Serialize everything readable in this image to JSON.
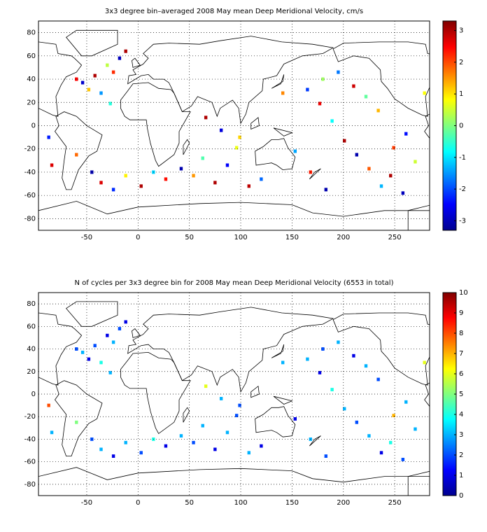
{
  "chart_data": [
    {
      "type": "heatmap",
      "title": "3x3 degree bin–averaged 2008 May mean Deep Meridional Velocity, cm/s",
      "xlim": [
        -97,
        284
      ],
      "ylim": [
        -90,
        90
      ],
      "xticks": [
        -50,
        0,
        50,
        100,
        150,
        200,
        250
      ],
      "yticks": [
        -80,
        -60,
        -40,
        -20,
        0,
        20,
        40,
        60,
        80
      ],
      "grid": true,
      "colorbar": {
        "lim": [
          -3.3,
          3.3
        ],
        "ticks": [
          -3,
          -2,
          -1,
          0,
          1,
          2,
          3
        ]
      },
      "cells": [
        [
          -60,
          40,
          2.5
        ],
        [
          -54,
          37,
          -2.8
        ],
        [
          -48,
          31,
          1.2
        ],
        [
          -42,
          43,
          3
        ],
        [
          -36,
          28,
          -1.5
        ],
        [
          -30,
          52,
          0.4
        ],
        [
          -24,
          46,
          2.2
        ],
        [
          -18,
          58,
          -2.9
        ],
        [
          -12,
          64,
          3
        ],
        [
          -27,
          19,
          -0.6
        ],
        [
          -60,
          -25,
          1.8
        ],
        [
          -45,
          -40,
          -3
        ],
        [
          -36,
          -49,
          2.7
        ],
        [
          -24,
          -55,
          -2.2
        ],
        [
          -12,
          -43,
          0.9
        ],
        [
          3,
          -52,
          3
        ],
        [
          15,
          -40,
          -1.1
        ],
        [
          27,
          -46,
          2.4
        ],
        [
          42,
          -37,
          -3
        ],
        [
          54,
          -43,
          1.5
        ],
        [
          63,
          -28,
          -0.3
        ],
        [
          75,
          -49,
          3
        ],
        [
          87,
          -34,
          -2.5
        ],
        [
          96,
          -19,
          0.7
        ],
        [
          108,
          -52,
          2.9
        ],
        [
          120,
          -46,
          -1.8
        ],
        [
          66,
          7,
          3
        ],
        [
          81,
          -4,
          -2.7
        ],
        [
          99,
          -10,
          1.1
        ],
        [
          165,
          31,
          -2.1
        ],
        [
          177,
          19,
          2.6
        ],
        [
          189,
          4,
          -0.8
        ],
        [
          201,
          -13,
          3
        ],
        [
          213,
          -25,
          -3
        ],
        [
          225,
          -37,
          1.9
        ],
        [
          237,
          -52,
          -1.3
        ],
        [
          249,
          -19,
          2.1
        ],
        [
          261,
          -7,
          -2.4
        ],
        [
          180,
          40,
          0.2
        ],
        [
          195,
          46,
          -1.7
        ],
        [
          210,
          34,
          2.8
        ],
        [
          222,
          25,
          -0.2
        ],
        [
          234,
          13,
          1.3
        ],
        [
          246,
          -43,
          3
        ],
        [
          258,
          -58,
          -2.9
        ],
        [
          270,
          -31,
          0.5
        ],
        [
          153,
          -22,
          -1.4
        ],
        [
          168,
          -40,
          2.3
        ],
        [
          183,
          -55,
          -3
        ],
        [
          141,
          28,
          1.6
        ],
        [
          -87,
          -10,
          -2.3
        ],
        [
          -84,
          -34,
          2.7
        ],
        [
          279,
          28,
          0.8
        ]
      ]
    },
    {
      "type": "heatmap",
      "title": "N of cycles per 3x3 degree bin for 2008 May mean Deep Meridional Velocity (6553 in total)",
      "xlim": [
        -97,
        284
      ],
      "ylim": [
        -90,
        90
      ],
      "xticks": [
        -50,
        0,
        50,
        100,
        150,
        200,
        250
      ],
      "yticks": [
        -80,
        -60,
        -40,
        -20,
        0,
        20,
        40,
        60,
        80
      ],
      "grid": true,
      "colorbar": {
        "lim": [
          0,
          10
        ],
        "ticks": [
          0,
          1,
          2,
          3,
          4,
          5,
          6,
          7,
          8,
          9,
          10
        ]
      },
      "cells": [
        [
          -60,
          40,
          2
        ],
        [
          -54,
          37,
          3
        ],
        [
          -48,
          31,
          1
        ],
        [
          -42,
          43,
          2
        ],
        [
          -36,
          28,
          4
        ],
        [
          -30,
          52,
          1
        ],
        [
          -24,
          46,
          3
        ],
        [
          -18,
          58,
          2
        ],
        [
          -12,
          64,
          1
        ],
        [
          -27,
          19,
          3
        ],
        [
          -60,
          -25,
          5
        ],
        [
          -45,
          -40,
          2
        ],
        [
          -36,
          -49,
          3
        ],
        [
          -24,
          -55,
          1
        ],
        [
          -12,
          -43,
          3
        ],
        [
          3,
          -52,
          2
        ],
        [
          15,
          -40,
          4
        ],
        [
          27,
          -46,
          1
        ],
        [
          42,
          -37,
          3
        ],
        [
          54,
          -43,
          2
        ],
        [
          63,
          -28,
          3
        ],
        [
          75,
          -49,
          1
        ],
        [
          87,
          -34,
          3
        ],
        [
          96,
          -19,
          2
        ],
        [
          108,
          -52,
          3
        ],
        [
          120,
          -46,
          1
        ],
        [
          66,
          7,
          6
        ],
        [
          81,
          -4,
          3
        ],
        [
          99,
          -10,
          2
        ],
        [
          165,
          31,
          3
        ],
        [
          177,
          19,
          1
        ],
        [
          189,
          4,
          4
        ],
        [
          201,
          -13,
          3
        ],
        [
          213,
          -25,
          2
        ],
        [
          225,
          -37,
          3
        ],
        [
          237,
          -52,
          1
        ],
        [
          249,
          -19,
          7
        ],
        [
          261,
          -7,
          3
        ],
        [
          180,
          40,
          2
        ],
        [
          195,
          46,
          3
        ],
        [
          210,
          34,
          1
        ],
        [
          222,
          25,
          3
        ],
        [
          234,
          13,
          2
        ],
        [
          246,
          -43,
          4
        ],
        [
          258,
          -58,
          2
        ],
        [
          270,
          -31,
          3
        ],
        [
          153,
          -22,
          1
        ],
        [
          168,
          -40,
          3
        ],
        [
          183,
          -55,
          2
        ],
        [
          141,
          28,
          3
        ],
        [
          -87,
          -10,
          8
        ],
        [
          -84,
          -34,
          3
        ],
        [
          279,
          28,
          6
        ]
      ]
    }
  ]
}
